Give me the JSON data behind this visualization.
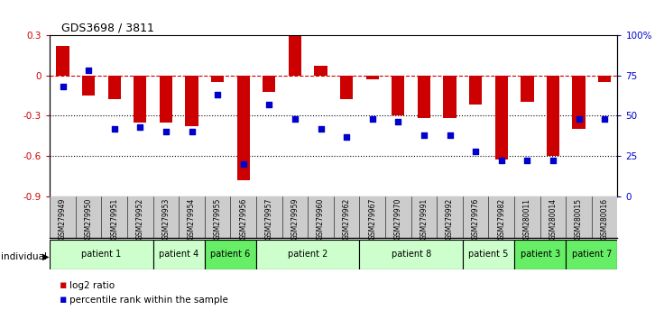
{
  "title": "GDS3698 / 3811",
  "samples": [
    "GSM279949",
    "GSM279950",
    "GSM279951",
    "GSM279952",
    "GSM279953",
    "GSM279954",
    "GSM279955",
    "GSM279956",
    "GSM279957",
    "GSM279959",
    "GSM279960",
    "GSM279962",
    "GSM279967",
    "GSM279970",
    "GSM279991",
    "GSM279992",
    "GSM279976",
    "GSM279982",
    "GSM280011",
    "GSM280014",
    "GSM280015",
    "GSM280016"
  ],
  "log2_ratio": [
    0.22,
    -0.15,
    -0.18,
    -0.35,
    -0.35,
    -0.38,
    -0.05,
    -0.78,
    -0.12,
    0.3,
    0.07,
    -0.18,
    -0.03,
    -0.3,
    -0.32,
    -0.32,
    -0.22,
    -0.63,
    -0.2,
    -0.6,
    -0.4,
    -0.05
  ],
  "percentile_rank": [
    68,
    78,
    42,
    43,
    40,
    40,
    63,
    20,
    57,
    48,
    42,
    37,
    48,
    46,
    38,
    38,
    28,
    22,
    22,
    22,
    48,
    48
  ],
  "patients": [
    {
      "label": "patient 1",
      "start": 0,
      "end": 4,
      "color": "#ccffcc"
    },
    {
      "label": "patient 4",
      "start": 4,
      "end": 6,
      "color": "#ccffcc"
    },
    {
      "label": "patient 6",
      "start": 6,
      "end": 8,
      "color": "#66ee66"
    },
    {
      "label": "patient 2",
      "start": 8,
      "end": 12,
      "color": "#ccffcc"
    },
    {
      "label": "patient 8",
      "start": 12,
      "end": 16,
      "color": "#ccffcc"
    },
    {
      "label": "patient 5",
      "start": 16,
      "end": 18,
      "color": "#ccffcc"
    },
    {
      "label": "patient 3",
      "start": 18,
      "end": 20,
      "color": "#66ee66"
    },
    {
      "label": "patient 7",
      "start": 20,
      "end": 22,
      "color": "#66ee66"
    }
  ],
  "ylim_left": [
    -0.9,
    0.3
  ],
  "ylim_right": [
    0,
    100
  ],
  "yticks_left": [
    -0.9,
    -0.6,
    -0.3,
    0.0,
    0.3
  ],
  "ytick_labels_left": [
    "-0.9",
    "-0.6",
    "-0.3",
    "0",
    "0.3"
  ],
  "yticks_right": [
    0,
    25,
    50,
    75,
    100
  ],
  "ytick_labels_right": [
    "0",
    "25",
    "50",
    "75",
    "100%"
  ],
  "hline_zero": 0.0,
  "hline_dotted": [
    -0.3,
    -0.6
  ],
  "bar_color": "#cc0000",
  "dot_color": "#0000cc",
  "bar_width": 0.5,
  "dot_size": 22,
  "background_color": "#ffffff",
  "gray_bg": "#cccccc"
}
